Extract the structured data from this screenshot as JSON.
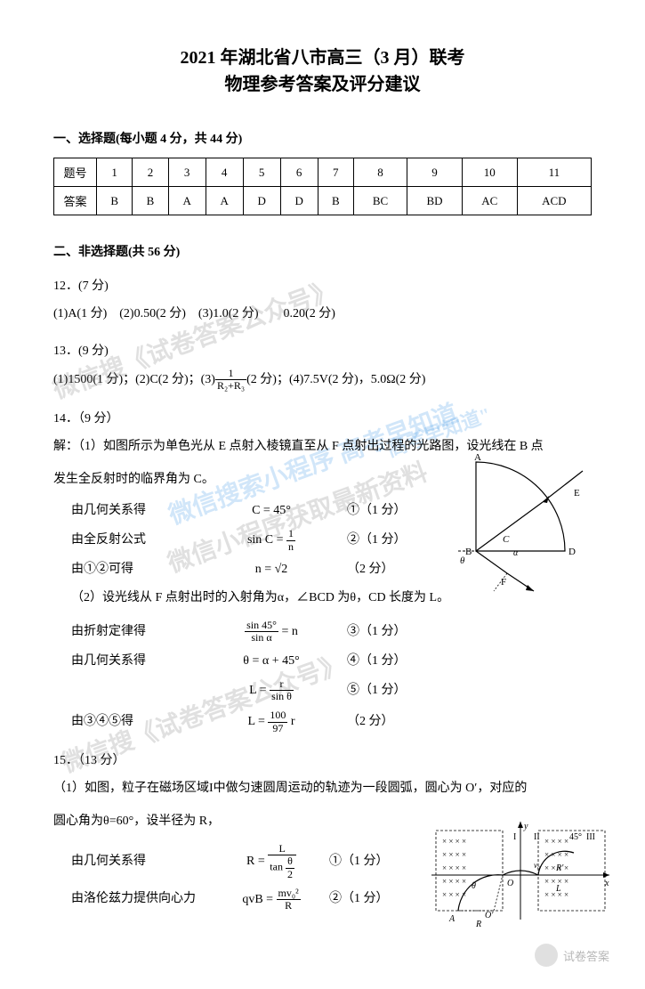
{
  "title": {
    "line1": "2021 年湖北省八市高三（3 月）联考",
    "line2": "物理参考答案及评分建议"
  },
  "section1": {
    "header": "一、选择题(每小题 4 分，共 44 分)",
    "row_label_q": "题号",
    "row_label_a": "答案",
    "columns": [
      "1",
      "2",
      "3",
      "4",
      "5",
      "6",
      "7",
      "8",
      "9",
      "10",
      "11"
    ],
    "answers": [
      "B",
      "B",
      "A",
      "A",
      "D",
      "D",
      "B",
      "BC",
      "BD",
      "AC",
      "ACD"
    ]
  },
  "section2": {
    "header": "二、非选择题(共 56 分)"
  },
  "q12": {
    "header": "12．(7 分)",
    "line": "(1)A(1 分)　(2)0.50(2 分)　(3)1.0(2 分)　　0.20(2 分)"
  },
  "q13": {
    "header": "13．(9 分)",
    "prefix": "(1)1500(1 分)；(2)C(2 分)；(3)",
    "frac_num": "1",
    "frac_den": "R₂+R₃",
    "suffix": "(2 分)；(4)7.5V(2 分)，5.0Ω(2 分)"
  },
  "q14": {
    "header": "14．（9 分）",
    "intro1": "解：（1）如图所示为单色光从 E 点射入棱镜直至从 F 点射出过程的光路图，设光线在 B 点",
    "intro2": "发生全反射时的临界角为 C。",
    "steps": [
      {
        "label": "由几何关系得",
        "formula": "C = 45°",
        "mark": "①（1 分）"
      },
      {
        "label": "由全反射公式",
        "formula_html": "sin C = <span class='frac'><span class='num'>1</span><span class='den'>n</span></span>",
        "mark": "②（1 分）"
      },
      {
        "label": "由①②可得",
        "formula": "n = √2",
        "mark": "（2 分）"
      }
    ],
    "part2_intro": "（2）设光线从 F 点射出时的入射角为α，∠BCD 为θ，CD 长度为 L。",
    "steps2": [
      {
        "label": "由折射定律得",
        "formula_html": "<span class='frac'><span class='num'>sin 45°</span><span class='den'>sin α</span></span> = n",
        "mark": "③（1 分）"
      },
      {
        "label": "由几何关系得",
        "formula": "θ = α + 45°",
        "mark": "④（1 分）"
      },
      {
        "label": "",
        "formula_html": "L = <span class='frac'><span class='num'>r</span><span class='den'>sin θ</span></span>",
        "mark": "⑤（1 分）"
      },
      {
        "label": "由③④⑤得",
        "formula_html": "L = <span class='frac'><span class='num'>100</span><span class='den'>97</span></span> r",
        "mark": "（2 分）"
      }
    ],
    "diagram_labels": {
      "A": "A",
      "B": "B",
      "C": "C",
      "D": "D",
      "E": "E",
      "F": "F",
      "theta": "θ",
      "alpha": "α"
    }
  },
  "q15": {
    "header": "15．（13 分）",
    "intro1": "（1）如图，粒子在磁场区域I中做匀速圆周运动的轨迹为一段圆弧，圆心为 O′，对应的",
    "intro2": "圆心角为θ=60°，设半径为 R，",
    "steps": [
      {
        "label": "由几何关系得",
        "formula_html": "R = <span class='frac'><span class='num'>L</span><span class='den'>tan <span class='frac'><span class='num'>θ</span><span class='den'>2</span></span></span></span>",
        "mark": "①（1 分）"
      },
      {
        "label": "由洛伦兹力提供向心力",
        "formula_html": "qvB = <span class='frac'><span class='num'>mv₀²</span><span class='den'>R</span></span>",
        "mark": "②（1 分）"
      }
    ]
  },
  "watermarks": {
    "wm1": "微信搜《试卷答案公众号》",
    "wm2": "微信搜索小程序 高考早知道",
    "wm2b": "\"高考早知道\"",
    "wm3": "微信小程序获取最新资料",
    "wm4": "微信搜《试卷答案公众号》",
    "bottom_text": "试卷答案"
  },
  "colors": {
    "wm_blue": "#4a9de8",
    "wm_gray": "#888888"
  }
}
